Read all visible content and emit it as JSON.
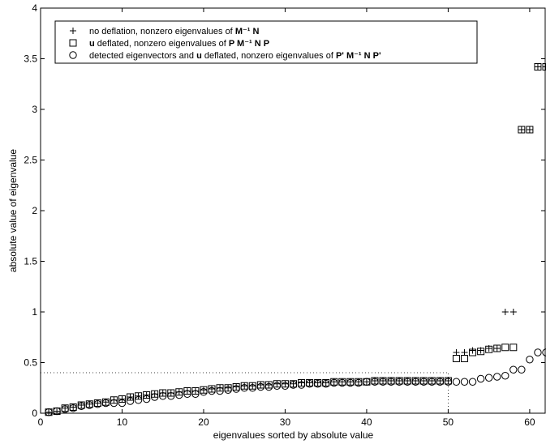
{
  "chart_data": {
    "type": "scatter",
    "xlabel": "eigenvalues sorted by absolute value",
    "ylabel": "absolute value of eigenvalue",
    "xlim": [
      0,
      62
    ],
    "ylim": [
      0,
      4
    ],
    "xticks": [
      0,
      10,
      20,
      30,
      40,
      50,
      60
    ],
    "yticks": [
      0,
      0.5,
      1,
      1.5,
      2,
      2.5,
      3,
      3.5,
      4
    ],
    "xtick_labels": [
      "0",
      "10",
      "20",
      "30",
      "40",
      "50",
      "60"
    ],
    "ytick_labels": [
      "0",
      "0.5",
      "1",
      "1.5",
      "2",
      "2.5",
      "3",
      "3.5",
      "4"
    ],
    "grid": false,
    "legend_position": "top-left",
    "legend": [
      {
        "marker": "plus",
        "text": "no deflation, nonzero eigenvalues of",
        "math": "M⁻¹ N"
      },
      {
        "marker": "square",
        "text": "deflated, nonzero eigenvalues of",
        "lead_bold": "u",
        "math": "P M⁻¹ N P"
      },
      {
        "marker": "circle",
        "text": "detected eigenvectors and",
        "lead_bold": "",
        "mid_bold": "u",
        "text2": "deflated, nonzero eigenvalues of",
        "math": "P' M⁻¹ N P'"
      }
    ],
    "reference_lines": [
      {
        "orientation": "horizontal",
        "y": 0.4,
        "x_range": [
          0,
          50
        ],
        "style": "dotted"
      },
      {
        "orientation": "vertical",
        "x": 50,
        "y_range": [
          0,
          0.4
        ],
        "style": "dotted"
      }
    ],
    "series": [
      {
        "marker": "plus",
        "x": [
          1,
          2,
          3,
          4,
          5,
          6,
          7,
          8,
          9,
          10,
          11,
          12,
          13,
          14,
          15,
          16,
          17,
          18,
          19,
          20,
          21,
          22,
          23,
          24,
          25,
          26,
          27,
          28,
          29,
          30,
          31,
          32,
          33,
          34,
          35,
          36,
          37,
          38,
          39,
          40,
          41,
          42,
          43,
          44,
          45,
          46,
          47,
          48,
          49,
          50,
          51,
          52,
          53,
          54,
          55,
          56,
          57,
          58,
          59,
          60,
          61,
          62
        ],
        "y": [
          0.01,
          0.02,
          0.05,
          0.06,
          0.08,
          0.09,
          0.1,
          0.11,
          0.13,
          0.14,
          0.16,
          0.17,
          0.18,
          0.19,
          0.2,
          0.2,
          0.21,
          0.22,
          0.22,
          0.23,
          0.24,
          0.25,
          0.25,
          0.26,
          0.27,
          0.27,
          0.28,
          0.28,
          0.29,
          0.29,
          0.29,
          0.3,
          0.3,
          0.3,
          0.3,
          0.31,
          0.31,
          0.31,
          0.31,
          0.31,
          0.32,
          0.32,
          0.32,
          0.32,
          0.32,
          0.32,
          0.32,
          0.32,
          0.32,
          0.32,
          0.6,
          0.6,
          0.62,
          0.62,
          0.64,
          0.64,
          1.0,
          1.0,
          2.8,
          2.8,
          3.42,
          3.42
        ]
      },
      {
        "marker": "square",
        "x": [
          1,
          2,
          3,
          4,
          5,
          6,
          7,
          8,
          9,
          10,
          11,
          12,
          13,
          14,
          15,
          16,
          17,
          18,
          19,
          20,
          21,
          22,
          23,
          24,
          25,
          26,
          27,
          28,
          29,
          30,
          31,
          32,
          33,
          34,
          35,
          36,
          37,
          38,
          39,
          40,
          41,
          42,
          43,
          44,
          45,
          46,
          47,
          48,
          49,
          50,
          51,
          52,
          53,
          54,
          55,
          56,
          57,
          58,
          59,
          60,
          61,
          62
        ],
        "y": [
          0.01,
          0.02,
          0.05,
          0.06,
          0.08,
          0.09,
          0.1,
          0.11,
          0.13,
          0.14,
          0.16,
          0.17,
          0.18,
          0.19,
          0.2,
          0.2,
          0.21,
          0.22,
          0.22,
          0.23,
          0.24,
          0.25,
          0.25,
          0.26,
          0.27,
          0.27,
          0.28,
          0.28,
          0.29,
          0.29,
          0.29,
          0.3,
          0.3,
          0.3,
          0.3,
          0.31,
          0.31,
          0.31,
          0.31,
          0.31,
          0.32,
          0.32,
          0.32,
          0.32,
          0.32,
          0.32,
          0.32,
          0.32,
          0.32,
          0.32,
          0.54,
          0.54,
          0.6,
          0.61,
          0.63,
          0.64,
          0.65,
          0.65,
          2.8,
          2.8,
          3.42,
          3.42
        ]
      },
      {
        "marker": "circle",
        "x": [
          1,
          2,
          3,
          4,
          5,
          6,
          7,
          8,
          9,
          10,
          11,
          12,
          13,
          14,
          15,
          16,
          17,
          18,
          19,
          20,
          21,
          22,
          23,
          24,
          25,
          26,
          27,
          28,
          29,
          30,
          31,
          32,
          33,
          34,
          35,
          36,
          37,
          38,
          39,
          40,
          41,
          42,
          43,
          44,
          45,
          46,
          47,
          48,
          49,
          50,
          51,
          52,
          53,
          54,
          55,
          56,
          57,
          58,
          59,
          60,
          61,
          62
        ],
        "y": [
          0.01,
          0.02,
          0.04,
          0.05,
          0.07,
          0.08,
          0.09,
          0.1,
          0.1,
          0.1,
          0.12,
          0.13,
          0.14,
          0.16,
          0.17,
          0.17,
          0.18,
          0.19,
          0.19,
          0.21,
          0.22,
          0.22,
          0.23,
          0.24,
          0.25,
          0.25,
          0.26,
          0.26,
          0.27,
          0.27,
          0.28,
          0.28,
          0.29,
          0.29,
          0.29,
          0.3,
          0.3,
          0.3,
          0.3,
          0.31,
          0.31,
          0.31,
          0.31,
          0.31,
          0.31,
          0.31,
          0.31,
          0.31,
          0.31,
          0.31,
          0.31,
          0.31,
          0.31,
          0.34,
          0.35,
          0.36,
          0.37,
          0.43,
          0.43,
          0.53,
          0.6,
          0.6
        ]
      }
    ]
  }
}
